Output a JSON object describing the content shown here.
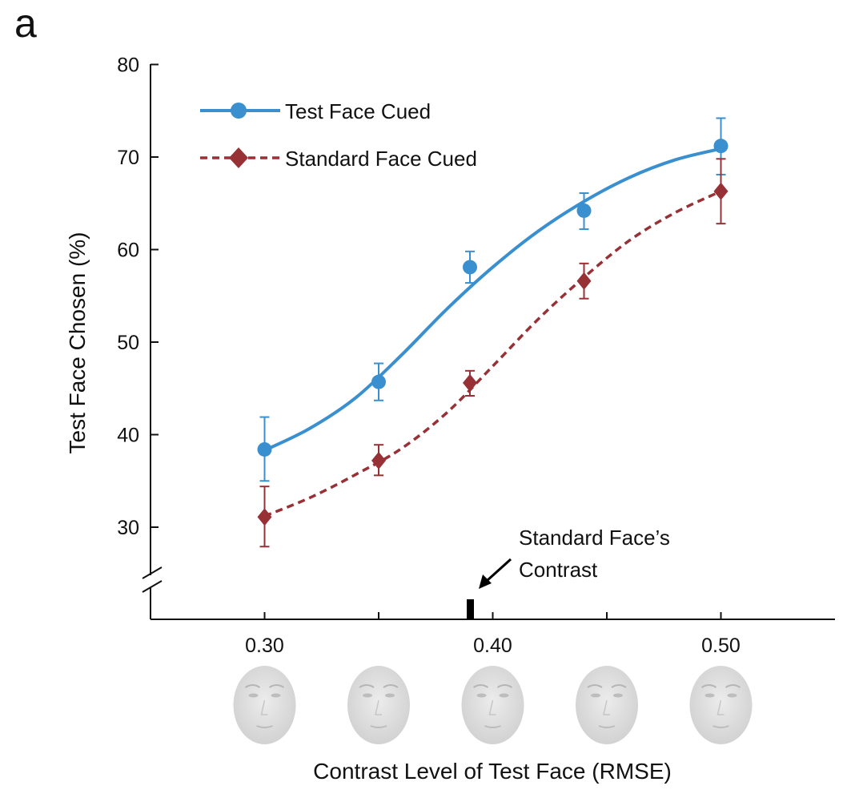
{
  "panel_label": "a",
  "chart_data": {
    "type": "line",
    "xlabel": "Contrast Level of Test Face (RMSE)",
    "ylabel": "Test Face Chosen (%)",
    "xlim": [
      0.25,
      0.55
    ],
    "ylim": [
      20,
      80
    ],
    "x_ticks": [
      0.3,
      0.35,
      0.4,
      0.45,
      0.5
    ],
    "x_tick_labels": [
      "0.30",
      "",
      "0.40",
      "",
      "0.50"
    ],
    "y_ticks": [
      30,
      40,
      50,
      60,
      70,
      80
    ],
    "y_tick_labels": [
      "30",
      "40",
      "50",
      "60",
      "70",
      "80"
    ],
    "axis_break": true,
    "grid": false,
    "legend_position": "top-left",
    "x": [
      0.3,
      0.35,
      0.39,
      0.44,
      0.5
    ],
    "series": [
      {
        "name": "Test Face Cued",
        "color": "#3a8fcf",
        "marker": "circle",
        "line_style": "solid",
        "values": [
          38.4,
          45.7,
          58.1,
          64.2,
          71.2
        ],
        "err_low": [
          35.0,
          43.7,
          56.4,
          62.2,
          68.1
        ],
        "err_high": [
          41.9,
          47.7,
          59.8,
          66.1,
          74.2
        ],
        "fit": {
          "x": [
            0.3,
            0.32,
            0.34,
            0.36,
            0.38,
            0.4,
            0.42,
            0.44,
            0.46,
            0.48,
            0.5
          ],
          "y": [
            38.3,
            40.7,
            44.0,
            48.6,
            53.6,
            58.1,
            62.0,
            65.2,
            67.8,
            69.7,
            70.9
          ]
        }
      },
      {
        "name": "Standard Face Cued",
        "color": "#983136",
        "marker": "diamond",
        "line_style": "dashed",
        "values": [
          31.1,
          37.2,
          45.6,
          56.6,
          66.3
        ],
        "err_low": [
          27.9,
          35.6,
          44.2,
          54.7,
          62.8
        ],
        "err_high": [
          34.4,
          38.9,
          46.9,
          58.5,
          69.8
        ],
        "fit": {
          "x": [
            0.3,
            0.32,
            0.34,
            0.36,
            0.38,
            0.4,
            0.42,
            0.44,
            0.46,
            0.48,
            0.5
          ],
          "y": [
            31.2,
            33.2,
            35.7,
            38.5,
            42.4,
            47.4,
            52.5,
            57.0,
            61.0,
            64.0,
            66.3
          ]
        }
      }
    ],
    "annotations": [
      {
        "text_lines": [
          "Standard Face’s",
          "Contrast"
        ],
        "target_x": 0.39
      }
    ],
    "face_thumbnails": [
      0.3,
      0.35,
      0.4,
      0.45,
      0.5
    ]
  }
}
